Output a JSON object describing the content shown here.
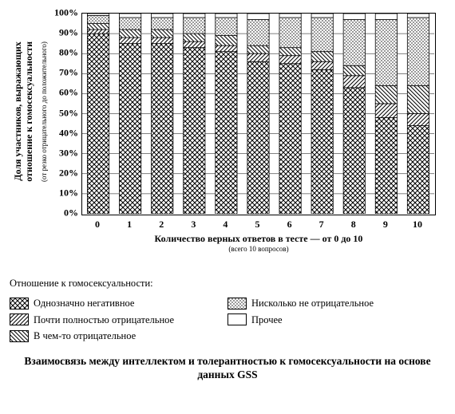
{
  "chart": {
    "type": "stacked-bar-100",
    "y_title": "Доля участников, выражающих\nотношение к гомосексуальности",
    "y_subtitle": "(от резко отрицательного до положительного)",
    "x_title": "Количество верных ответов в тесте — от 0 до 10",
    "x_subtitle": "(всего 10 вопросов)",
    "categories": [
      "0",
      "1",
      "2",
      "3",
      "4",
      "5",
      "6",
      "7",
      "8",
      "9",
      "10"
    ],
    "ylim": [
      0,
      100
    ],
    "ytick_step": 10,
    "ytick_labels": [
      "0%",
      "10%",
      "20%",
      "30%",
      "40%",
      "50%",
      "60%",
      "70%",
      "80%",
      "90%",
      "100%"
    ],
    "bar_width": 0.68,
    "plot_border_color": "#000000",
    "grid_color": "#000000",
    "background_color": "#ffffff",
    "series": [
      {
        "key": "strong_neg",
        "label": "Однозначно негативное",
        "pattern": "crosshatch"
      },
      {
        "key": "almost_neg",
        "label": "Почти полностью отрицательное",
        "pattern": "diag-bl-tr"
      },
      {
        "key": "somewhat_neg",
        "label": "В чем-то отрицательное",
        "pattern": "diag-tl-br"
      },
      {
        "key": "not_neg",
        "label": "Нисколько не отрицательное",
        "pattern": "dots"
      },
      {
        "key": "other",
        "label": "Прочее",
        "pattern": "blank"
      }
    ],
    "data": {
      "strong_neg": [
        90,
        85,
        85,
        83,
        81,
        76,
        75,
        72,
        63,
        48,
        44
      ],
      "almost_neg": [
        2,
        3,
        3,
        3,
        3,
        4,
        4,
        4,
        6,
        7,
        6
      ],
      "somewhat_neg": [
        3,
        4,
        4,
        4,
        5,
        4,
        4,
        5,
        5,
        9,
        14
      ],
      "not_neg": [
        4,
        6,
        6,
        8,
        9,
        13,
        15,
        17,
        23,
        33,
        34
      ],
      "other": [
        1,
        2,
        2,
        2,
        2,
        3,
        2,
        2,
        3,
        3,
        2
      ]
    },
    "title_fontsize": 12,
    "tick_fontsize": 12,
    "font_family": "Times New Roman"
  },
  "legend": {
    "heading": "Отношение к гомосексуальности:"
  },
  "caption": "Взаимосвязь между интеллектом и толерантностью\nк гомосексуальности на основе данных GSS"
}
